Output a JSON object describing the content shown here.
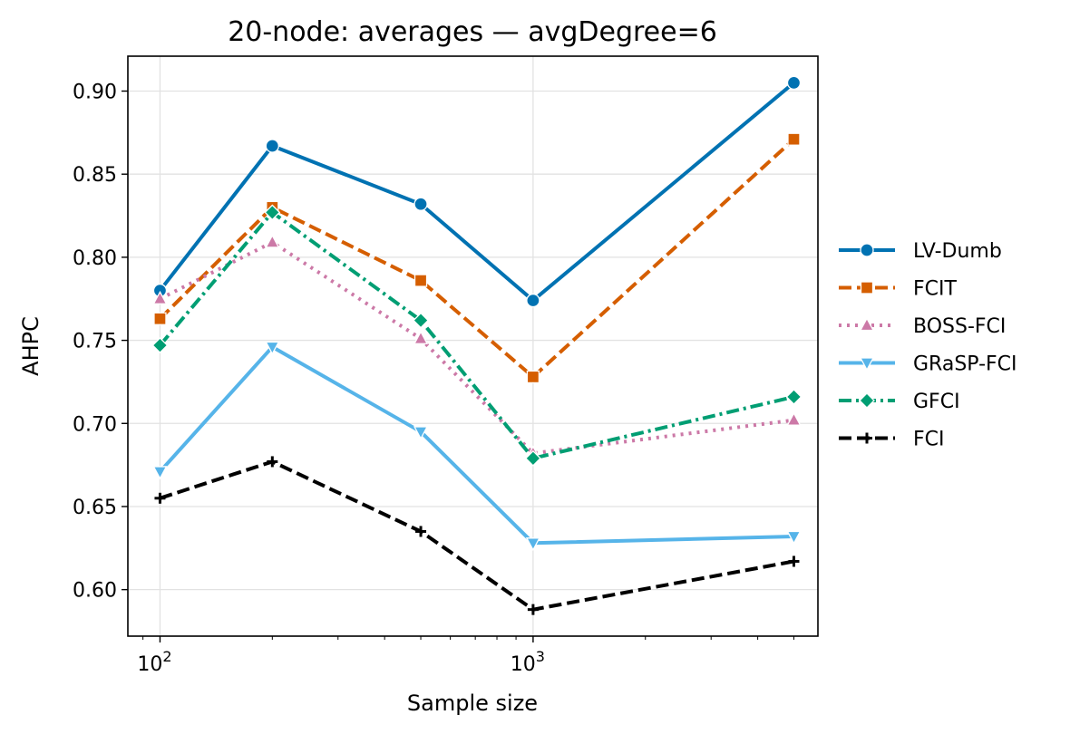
{
  "chart_data": {
    "type": "line",
    "title": "20-node: averages — avgDegree=6",
    "xlabel": "Sample size",
    "ylabel": "AHPC",
    "xscale": "log",
    "xlim": [
      82,
      5800
    ],
    "ylim": [
      0.572,
      0.921
    ],
    "grid": true,
    "legend_position": "right",
    "x": [
      100,
      200,
      500,
      1000,
      5000
    ],
    "x_ticks": [
      {
        "value": 100,
        "base": "10",
        "exp": "2"
      },
      {
        "value": 1000,
        "base": "10",
        "exp": "3"
      }
    ],
    "y_ticks": [
      {
        "value": 0.6,
        "label": "0.60"
      },
      {
        "value": 0.65,
        "label": "0.65"
      },
      {
        "value": 0.7,
        "label": "0.70"
      },
      {
        "value": 0.75,
        "label": "0.75"
      },
      {
        "value": 0.8,
        "label": "0.80"
      },
      {
        "value": 0.85,
        "label": "0.85"
      },
      {
        "value": 0.9,
        "label": "0.90"
      }
    ],
    "series": [
      {
        "name": "LV-Dumb",
        "values": [
          0.78,
          0.867,
          0.832,
          0.774,
          0.905
        ],
        "color": "#0072b2",
        "dash": "solid",
        "marker": "circle"
      },
      {
        "name": "FCIT",
        "values": [
          0.763,
          0.83,
          0.786,
          0.728,
          0.871
        ],
        "color": "#d55e00",
        "dash": "dashed",
        "marker": "square"
      },
      {
        "name": "BOSS-FCI",
        "values": [
          0.775,
          0.809,
          0.751,
          0.682,
          0.702
        ],
        "color": "#cc79a7",
        "dash": "dotted",
        "marker": "triangle-up"
      },
      {
        "name": "GRaSP-FCI",
        "values": [
          0.671,
          0.746,
          0.695,
          0.628,
          0.632
        ],
        "color": "#56b4e9",
        "dash": "solid",
        "marker": "triangle-down"
      },
      {
        "name": "GFCI",
        "values": [
          0.747,
          0.827,
          0.762,
          0.679,
          0.716
        ],
        "color": "#009e73",
        "dash": "dashdot",
        "marker": "diamond"
      },
      {
        "name": "FCI",
        "values": [
          0.655,
          0.677,
          0.635,
          0.588,
          0.617
        ],
        "color": "#000000",
        "dash": "dashed",
        "marker": "plus"
      }
    ]
  }
}
